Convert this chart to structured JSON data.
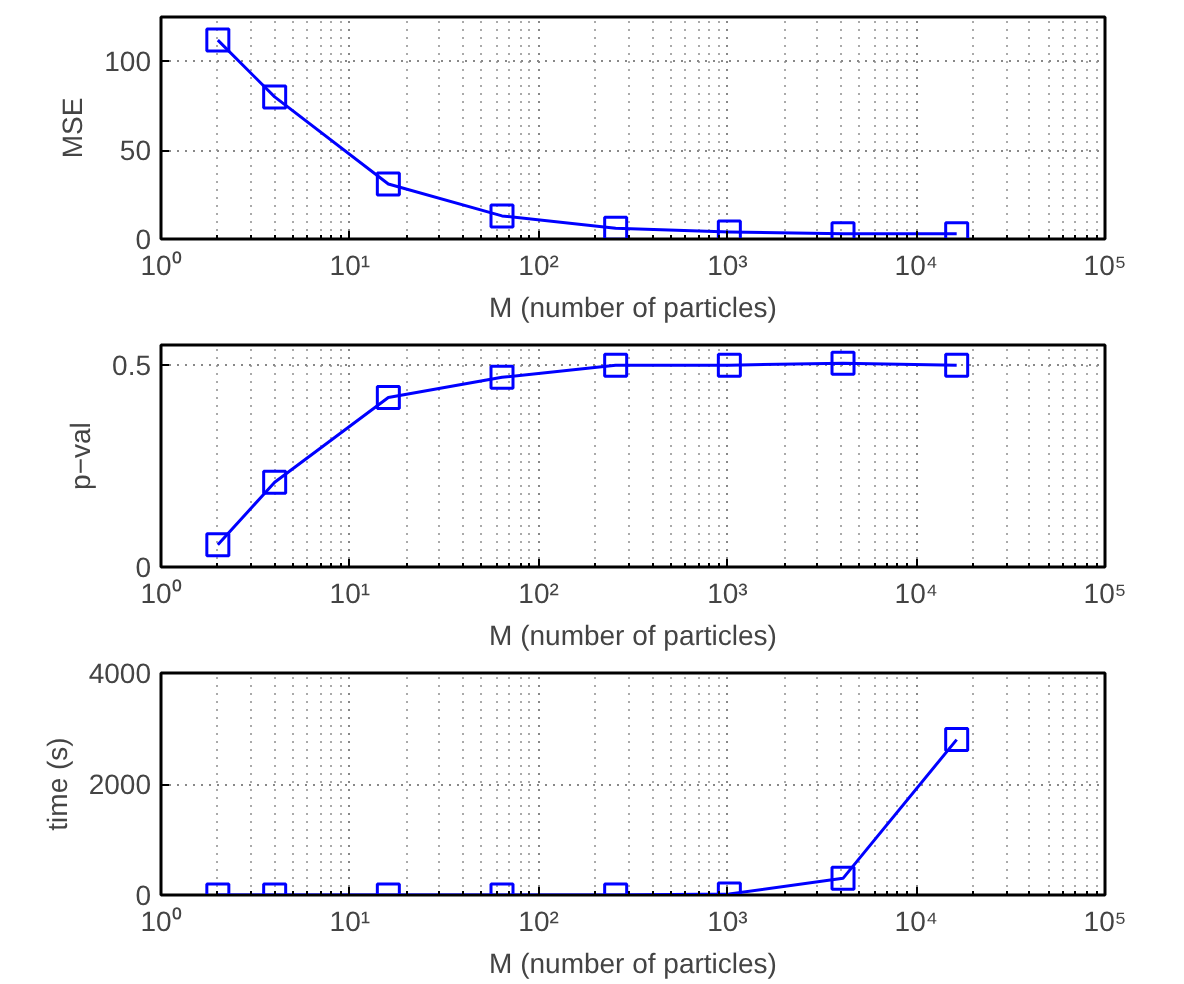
{
  "chart_data": [
    {
      "type": "line",
      "xlabel": "M (number of particles)",
      "ylabel": "MSE",
      "log": "x",
      "grid": true,
      "marker": "square",
      "line_style": "solid",
      "xlim": [
        1,
        100000
      ],
      "xticks": [
        {
          "value": 1,
          "label": "10⁰"
        },
        {
          "value": 10,
          "label": "10¹"
        },
        {
          "value": 100,
          "label": "10²"
        },
        {
          "value": 1000,
          "label": "10³"
        },
        {
          "value": 10000,
          "label": "10⁴"
        },
        {
          "value": 100000,
          "label": "10⁵"
        }
      ],
      "ylim": [
        0,
        125
      ],
      "yticks": [
        0,
        50,
        100
      ],
      "x": [
        2,
        4,
        16,
        64,
        256,
        1024,
        4096,
        16384
      ],
      "series": [
        {
          "color": "#0000ff",
          "values": [
            112,
            80,
            31,
            13,
            6,
            4,
            3,
            3
          ]
        }
      ]
    },
    {
      "type": "line",
      "xlabel": "M (number of particles)",
      "ylabel": "p−val",
      "log": "x",
      "grid": true,
      "marker": "square",
      "line_style": "solid",
      "xlim": [
        1,
        100000
      ],
      "xticks": [
        {
          "value": 1,
          "label": "10⁰"
        },
        {
          "value": 10,
          "label": "10¹"
        },
        {
          "value": 100,
          "label": "10²"
        },
        {
          "value": 1000,
          "label": "10³"
        },
        {
          "value": 10000,
          "label": "10⁴"
        },
        {
          "value": 100000,
          "label": "10⁵"
        }
      ],
      "ylim": [
        0,
        0.55
      ],
      "yticks": [
        0,
        0.5
      ],
      "x": [
        2,
        4,
        16,
        64,
        256,
        1024,
        4096,
        16384
      ],
      "series": [
        {
          "color": "#0000ff",
          "values": [
            0.055,
            0.21,
            0.42,
            0.47,
            0.5,
            0.5,
            0.505,
            0.5
          ]
        }
      ]
    },
    {
      "type": "line",
      "xlabel": "M (number of particles)",
      "ylabel": "time (s)",
      "log": "x",
      "grid": true,
      "marker": "square",
      "line_style": "solid",
      "xlim": [
        1,
        100000
      ],
      "xticks": [
        {
          "value": 1,
          "label": "10⁰"
        },
        {
          "value": 10,
          "label": "10¹"
        },
        {
          "value": 100,
          "label": "10²"
        },
        {
          "value": 1000,
          "label": "10³"
        },
        {
          "value": 10000,
          "label": "10⁴"
        },
        {
          "value": 100000,
          "label": "10⁵"
        }
      ],
      "ylim": [
        0,
        4000
      ],
      "yticks": [
        0,
        2000,
        4000
      ],
      "x": [
        2,
        4,
        16,
        64,
        256,
        1024,
        4096,
        16384
      ],
      "series": [
        {
          "color": "#0000ff",
          "values": [
            0,
            0,
            0,
            0,
            0,
            20,
            300,
            2800
          ]
        }
      ]
    }
  ]
}
